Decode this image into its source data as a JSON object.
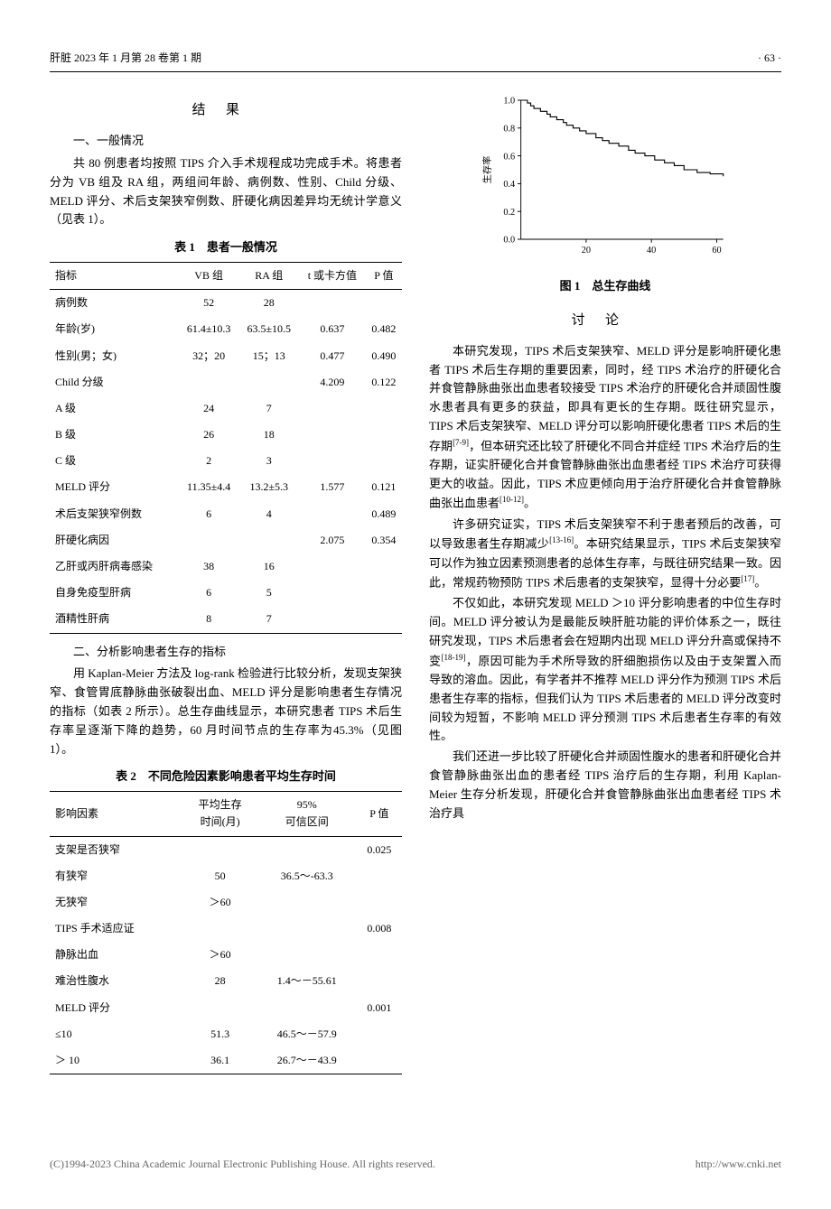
{
  "header": {
    "left": "肝脏 2023 年 1 月第 28 卷第 1 期",
    "right": "· 63 ·"
  },
  "sections": {
    "results_title": "结果",
    "sub1_title": "一、一般情况",
    "sub1_para": "共 80 例患者均按照 TIPS 介入手术规程成功完成手术。将患者分为 VB 组及 RA 组，两组间年龄、病例数、性别、Child 分级、MELD 评分、术后支架狭窄例数、肝硬化病因差异均无统计学意义（见表 1）。",
    "table1_caption": "表 1　患者一般情况",
    "sub2_title": "二、分析影响患者生存的指标",
    "sub2_para": "用 Kaplan-Meier 方法及 log-rank 检验进行比较分析，发现支架狭窄、食管胃底静脉曲张破裂出血、MELD 评分是影响患者生存情况的指标（如表 2 所示）。总生存曲线显示，本研究患者 TIPS 术后生存率呈逐渐下降的趋势，60 月时间节点的生存率为45.3%（见图 1）。",
    "table2_caption": "表 2　不同危险因素影响患者平均生存时间",
    "fig1_caption": "图 1　总生存曲线",
    "discussion_title": "讨论",
    "disc_p1": "本研究发现，TIPS 术后支架狭窄、MELD 评分是影响肝硬化患者 TIPS 术后生存期的重要因素，同时，经 TIPS 术治疗的肝硬化合并食管静脉曲张出血患者较接受 TIPS 术治疗的肝硬化合并顽固性腹水患者具有更多的获益，即具有更长的生存期。既往研究显示，TIPS 术后支架狭窄、MELD 评分可以影响肝硬化患者 TIPS 术后的生存期",
    "disc_p1_ref": "[7-9]",
    "disc_p1b": "，但本研究还比较了肝硬化不同合并症经 TIPS 术治疗后的生存期，证实肝硬化合并食管静脉曲张出血患者经 TIPS 术治疗可获得更大的收益。因此，TIPS 术应更倾向用于治疗肝硬化合并食管静脉曲张出血患者",
    "disc_p1b_ref": "[10-12]",
    "disc_p1c": "。",
    "disc_p2": "许多研究证实，TIPS 术后支架狭窄不利于患者预后的改善，可以导致患者生存期减少",
    "disc_p2_ref": "[13-16]",
    "disc_p2b": "。本研究结果显示，TIPS 术后支架狭窄可以作为独立因素预测患者的总体生存率，与既往研究结果一致。因此，常规药物预防 TIPS 术后患者的支架狭窄，显得十分必要",
    "disc_p2b_ref": "[17]",
    "disc_p2c": "。",
    "disc_p3a": "不仅如此，本研究发现 MELD ＞10 评分影响患者的中位生存时间。MELD 评分被认为是最能反映肝脏功能的评价体系之一，既往研究发现，TIPS 术后患者会在短期内出现 MELD 评分升高或保持不变",
    "disc_p3_ref": "[18-19]",
    "disc_p3b": "，原因可能为手术所导致的肝细胞损伤以及由于支架置入而导致的溶血。因此，有学者并不推荐 MELD 评分作为预测 TIPS 术后患者生存率的指标，但我们认为 TIPS 术后患者的 MELD 评分改变时间较为短暂，不影响 MELD 评分预测 TIPS 术后患者生存率的有效性。",
    "disc_p4": "我们还进一步比较了肝硬化合并顽固性腹水的患者和肝硬化合并食管静脉曲张出血的患者经 TIPS 治疗后的生存期，利用 Kaplan-Meier 生存分析发现，肝硬化合并食管静脉曲张出血患者经 TIPS 术治疗具"
  },
  "table1": {
    "headers": [
      "指标",
      "VB 组",
      "RA 组",
      "t 或卡方值",
      "P 值"
    ],
    "rows": [
      {
        "cells": [
          "病例数",
          "52",
          "28",
          "",
          ""
        ],
        "indent": false
      },
      {
        "cells": [
          "年龄(岁)",
          "61.4±10.3",
          "63.5±10.5",
          "0.637",
          "0.482"
        ],
        "indent": false
      },
      {
        "cells": [
          "性别(男；女)",
          "32；20",
          "15；13",
          "0.477",
          "0.490"
        ],
        "indent": false
      },
      {
        "cells": [
          "Child 分级",
          "",
          "",
          "4.209",
          "0.122"
        ],
        "indent": false
      },
      {
        "cells": [
          "A 级",
          "24",
          "7",
          "",
          ""
        ],
        "indent": true
      },
      {
        "cells": [
          "B 级",
          "26",
          "18",
          "",
          ""
        ],
        "indent": true
      },
      {
        "cells": [
          "C 级",
          "2",
          "3",
          "",
          ""
        ],
        "indent": true
      },
      {
        "cells": [
          "MELD 评分",
          "11.35±4.4",
          "13.2±5.3",
          "1.577",
          "0.121"
        ],
        "indent": false
      },
      {
        "cells": [
          "术后支架狭窄例数",
          "6",
          "4",
          "",
          "0.489"
        ],
        "indent": false
      },
      {
        "cells": [
          "肝硬化病因",
          "",
          "",
          "2.075",
          "0.354"
        ],
        "indent": false
      },
      {
        "cells": [
          "乙肝或丙肝病毒感染",
          "38",
          "16",
          "",
          ""
        ],
        "indent": true
      },
      {
        "cells": [
          "自身免疫型肝病",
          "6",
          "5",
          "",
          ""
        ],
        "indent": true
      },
      {
        "cells": [
          "酒精性肝病",
          "8",
          "7",
          "",
          ""
        ],
        "indent": true
      }
    ]
  },
  "table2": {
    "headers": [
      "影响因素",
      "平均生存\n时间(月)",
      "95%\n可信区间",
      "P 值"
    ],
    "rows": [
      {
        "cells": [
          "支架是否狭窄",
          "",
          "",
          "0.025"
        ],
        "indent": false
      },
      {
        "cells": [
          "有狭窄",
          "50",
          "36.5～-63.3",
          ""
        ],
        "indent": true
      },
      {
        "cells": [
          "无狭窄",
          "＞60",
          "",
          ""
        ],
        "indent": true
      },
      {
        "cells": [
          "TIPS 手术适应证",
          "",
          "",
          "0.008"
        ],
        "indent": false
      },
      {
        "cells": [
          "静脉出血",
          "＞60",
          "",
          ""
        ],
        "indent": true
      },
      {
        "cells": [
          "难治性腹水",
          "28",
          "1.4～－55.61",
          ""
        ],
        "indent": true
      },
      {
        "cells": [
          "MELD 评分",
          "",
          "",
          "0.001"
        ],
        "indent": false
      },
      {
        "cells": [
          "≤10",
          "51.3",
          "46.5～－57.9",
          ""
        ],
        "indent": true
      },
      {
        "cells": [
          "＞ 10",
          "36.1",
          "26.7～－43.9",
          ""
        ],
        "indent": true
      }
    ]
  },
  "chart": {
    "type": "line",
    "ylabel": "生存率",
    "xlabel": "",
    "ylim": [
      0,
      1.0
    ],
    "yticks": [
      0.0,
      0.2,
      0.4,
      0.6,
      0.8,
      1.0
    ],
    "xticks": [
      20,
      40,
      60
    ],
    "points": [
      [
        0,
        1.0
      ],
      [
        2,
        0.98
      ],
      [
        3,
        0.96
      ],
      [
        4,
        0.94
      ],
      [
        6,
        0.92
      ],
      [
        8,
        0.9
      ],
      [
        9,
        0.88
      ],
      [
        11,
        0.86
      ],
      [
        13,
        0.84
      ],
      [
        14,
        0.82
      ],
      [
        16,
        0.8
      ],
      [
        18,
        0.78
      ],
      [
        20,
        0.76
      ],
      [
        23,
        0.73
      ],
      [
        25,
        0.71
      ],
      [
        27,
        0.69
      ],
      [
        30,
        0.67
      ],
      [
        33,
        0.64
      ],
      [
        35,
        0.62
      ],
      [
        38,
        0.6
      ],
      [
        41,
        0.57
      ],
      [
        44,
        0.55
      ],
      [
        47,
        0.53
      ],
      [
        50,
        0.5
      ],
      [
        54,
        0.48
      ],
      [
        58,
        0.47
      ],
      [
        62,
        0.453
      ]
    ],
    "line_color": "#000000",
    "line_width": 1.2,
    "background_color": "#ffffff",
    "axis_color": "#000000",
    "tick_fontsize": 11,
    "label_fontsize": 11
  },
  "footer": {
    "left": "(C)1994-2023 China Academic Journal Electronic Publishing House. All rights reserved.",
    "right": "http://www.cnki.net"
  }
}
